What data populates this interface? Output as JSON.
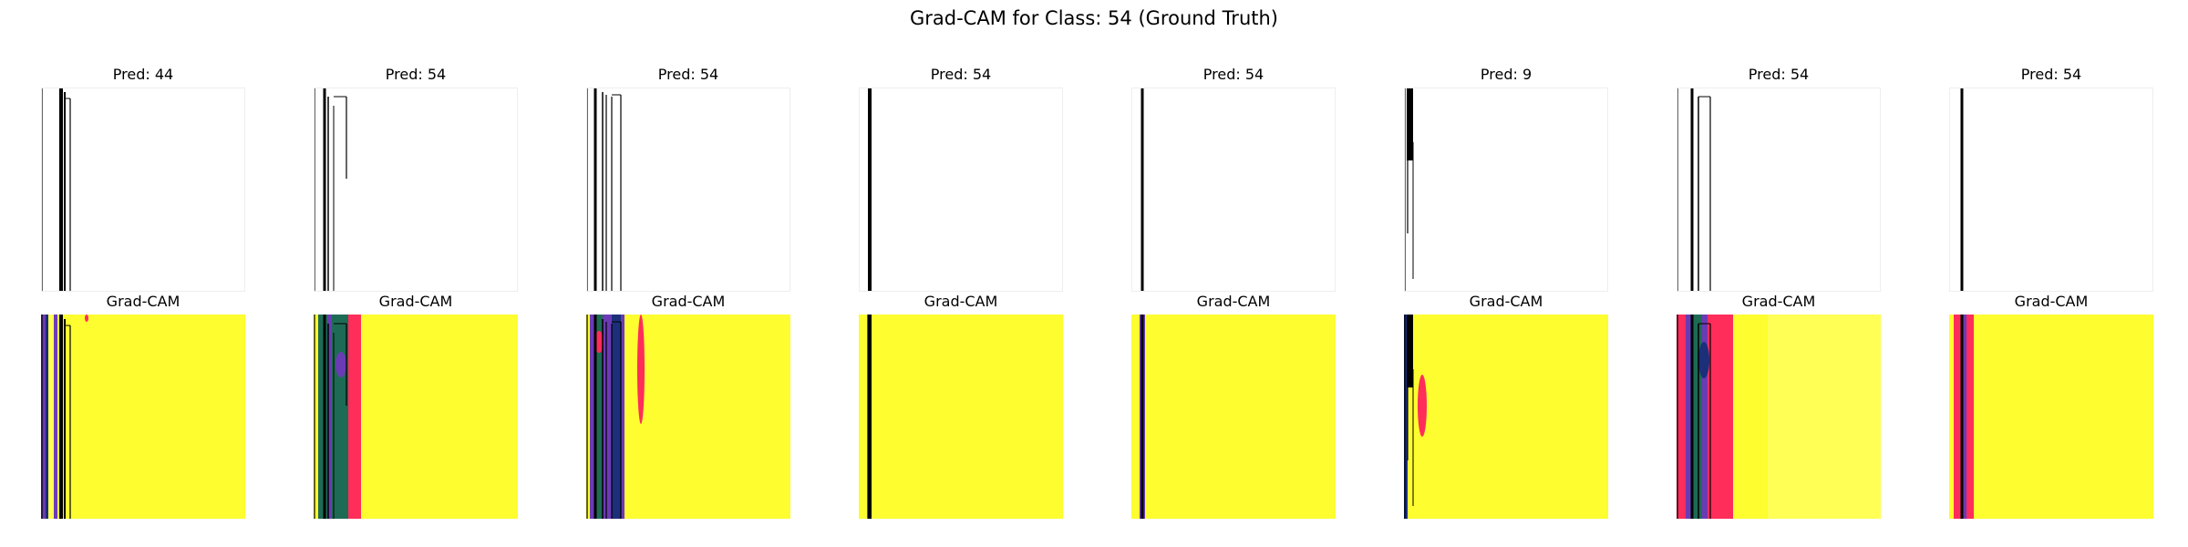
{
  "figure": {
    "title": "Grad-CAM for Class: 54 (Ground Truth)"
  },
  "colors": {
    "background": "#ffffff",
    "panel_border": "#eeeeee",
    "stroke": "#000000",
    "cam_yellow": "#fdfd30",
    "cam_yellow_light": "#ffff55",
    "cam_pink": "#ff2d5a",
    "cam_purple": "#6b3bb5",
    "cam_green": "#1e6b55",
    "cam_navy": "#1c2f7a"
  },
  "panels": [
    {
      "pred_label": "Pred: 44",
      "cam_label": "Grad-CAM",
      "variant": "a"
    },
    {
      "pred_label": "Pred: 54",
      "cam_label": "Grad-CAM",
      "variant": "b"
    },
    {
      "pred_label": "Pred: 54",
      "cam_label": "Grad-CAM",
      "variant": "c"
    },
    {
      "pred_label": "Pred: 54",
      "cam_label": "Grad-CAM",
      "variant": "d"
    },
    {
      "pred_label": "Pred: 54",
      "cam_label": "Grad-CAM",
      "variant": "e"
    },
    {
      "pred_label": "Pred: 9",
      "cam_label": "Grad-CAM",
      "variant": "f"
    },
    {
      "pred_label": "Pred: 54",
      "cam_label": "Grad-CAM",
      "variant": "g"
    },
    {
      "pred_label": "Pred: 54",
      "cam_label": "Grad-CAM",
      "variant": "h"
    }
  ]
}
